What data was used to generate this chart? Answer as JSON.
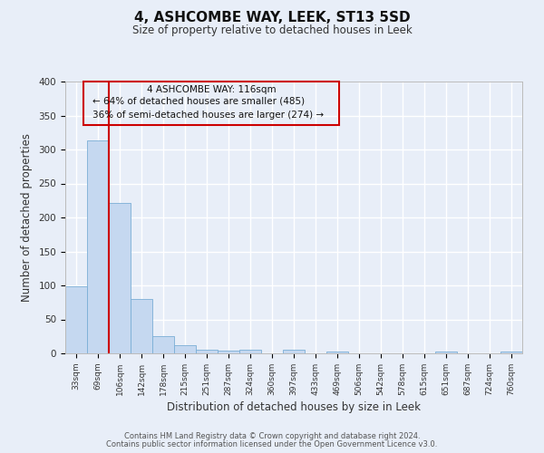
{
  "title": "4, ASHCOMBE WAY, LEEK, ST13 5SD",
  "subtitle": "Size of property relative to detached houses in Leek",
  "xlabel": "Distribution of detached houses by size in Leek",
  "ylabel": "Number of detached properties",
  "bin_labels": [
    "33sqm",
    "69sqm",
    "106sqm",
    "142sqm",
    "178sqm",
    "215sqm",
    "251sqm",
    "287sqm",
    "324sqm",
    "360sqm",
    "397sqm",
    "433sqm",
    "469sqm",
    "506sqm",
    "542sqm",
    "578sqm",
    "615sqm",
    "651sqm",
    "687sqm",
    "724sqm",
    "760sqm"
  ],
  "bar_values": [
    99,
    313,
    222,
    80,
    26,
    12,
    5,
    4,
    5,
    0,
    6,
    0,
    3,
    0,
    0,
    0,
    0,
    3,
    0,
    0,
    3
  ],
  "bar_color": "#c5d8f0",
  "bar_edge_color": "#7aaed6",
  "ylim": [
    0,
    400
  ],
  "yticks": [
    0,
    50,
    100,
    150,
    200,
    250,
    300,
    350,
    400
  ],
  "property_label": "4 ASHCOMBE WAY: 116sqm",
  "annotation_line1": "← 64% of detached houses are smaller (485)",
  "annotation_line2": "36% of semi-detached houses are larger (274) →",
  "box_color": "#cc0000",
  "bg_color": "#e8eef8",
  "footer1": "Contains HM Land Registry data © Crown copyright and database right 2024.",
  "footer2": "Contains public sector information licensed under the Open Government Licence v3.0."
}
